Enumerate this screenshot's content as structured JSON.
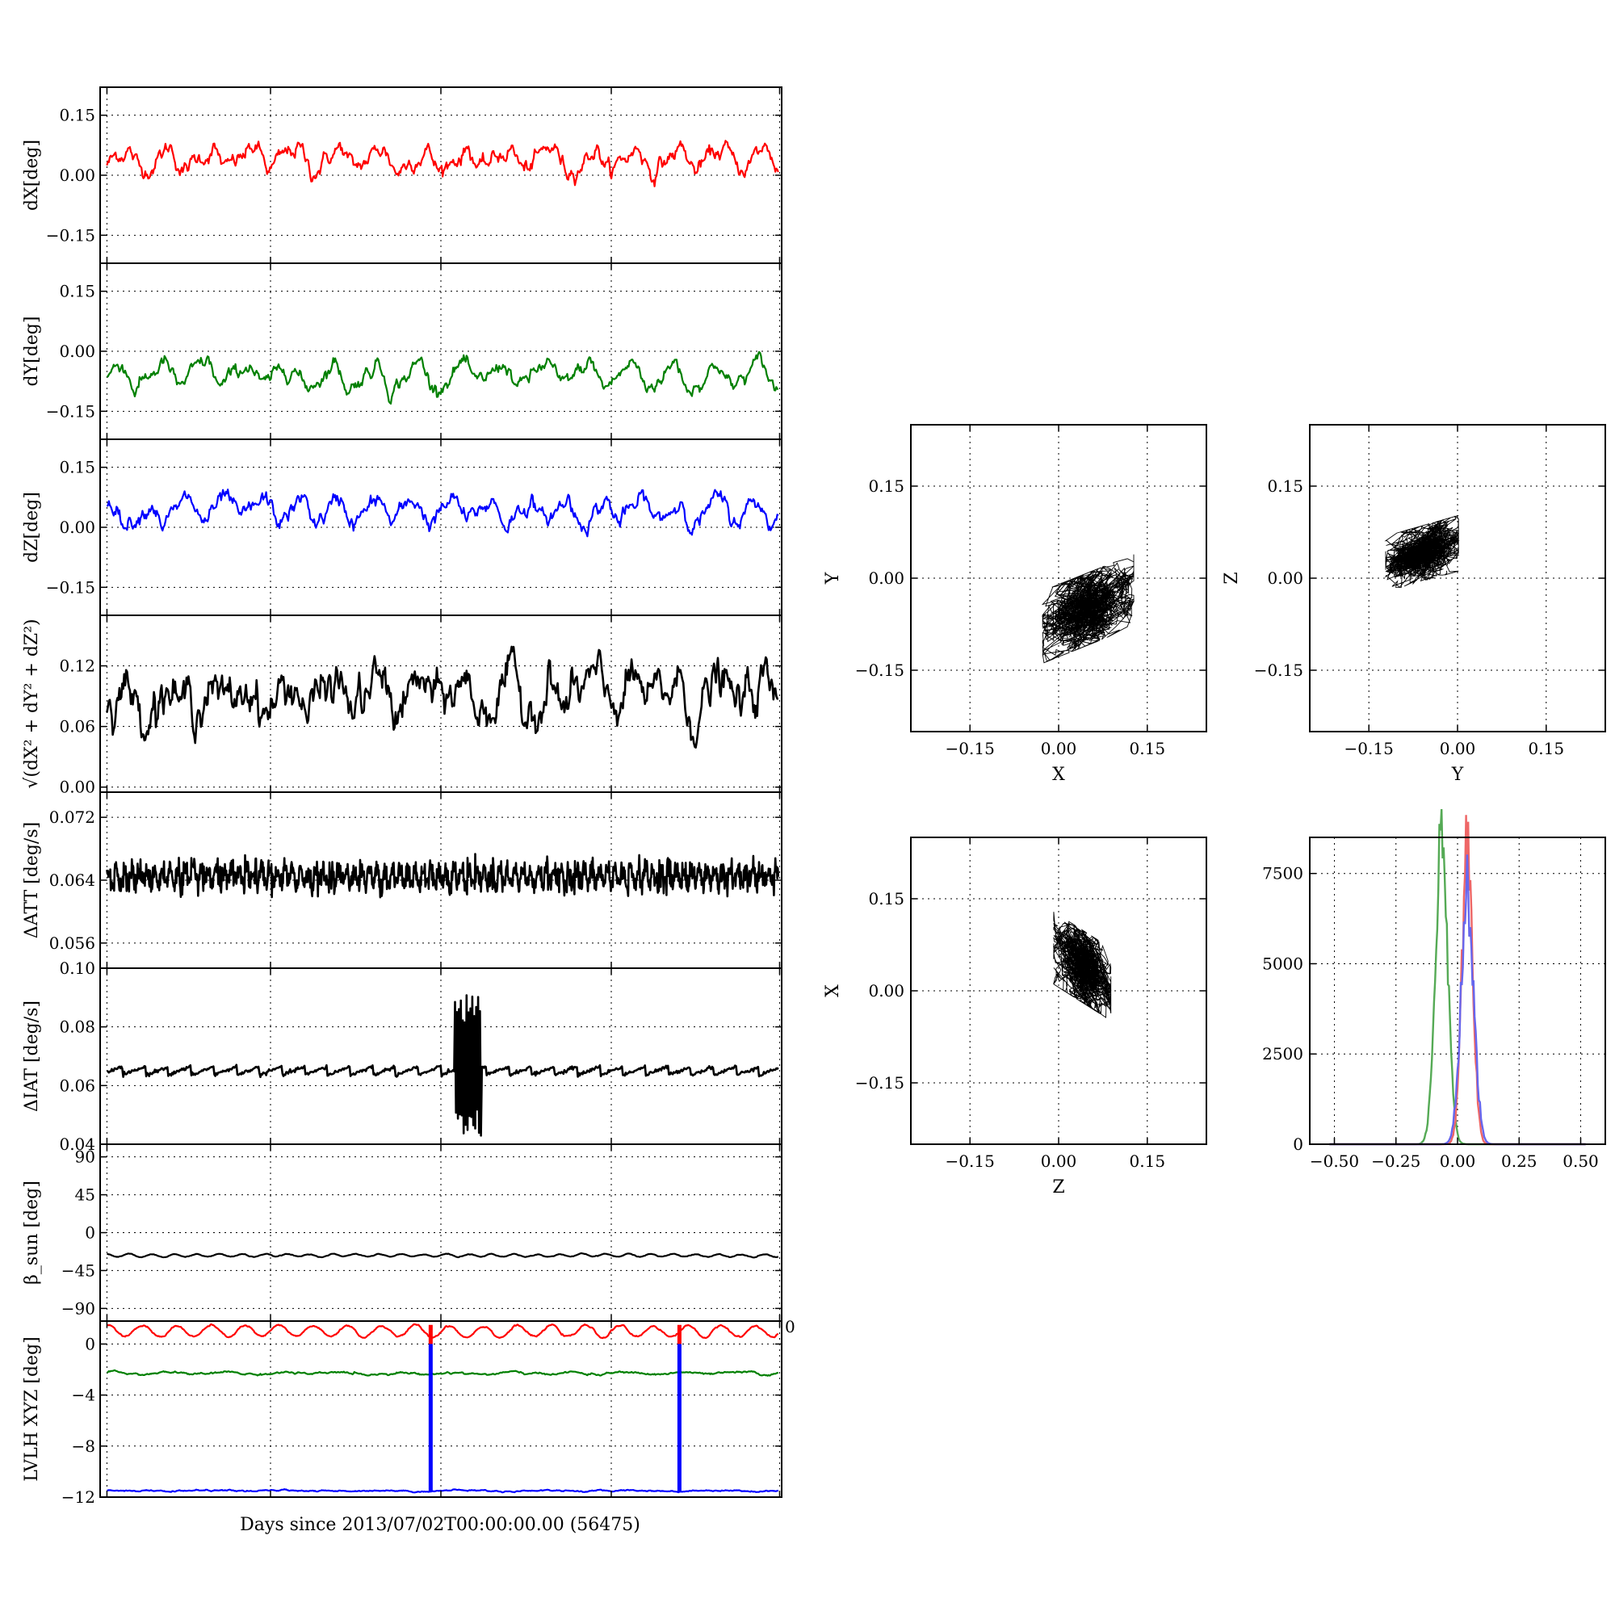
{
  "figure": {
    "xlabel": "Days since 2013/07/02T00:00:00.00 (56475)"
  },
  "chart_data": [
    {
      "id": "dx",
      "type": "line",
      "ylabel": "dX[deg]",
      "ylim": [
        -0.22,
        0.22
      ],
      "yticks": [
        -0.15,
        0.0,
        0.15
      ],
      "yticklabels": [
        "−0.15",
        "0.00",
        "0.15"
      ],
      "grid": true,
      "series": [
        {
          "color": "#ff0000",
          "mean": 0.04,
          "amplitude": 0.032,
          "noise": 0.008,
          "cycles": 16,
          "phase": 0.3
        }
      ]
    },
    {
      "id": "dy",
      "type": "line",
      "ylabel": "dY[deg]",
      "ylim": [
        -0.22,
        0.22
      ],
      "yticks": [
        -0.15,
        0.0,
        0.15
      ],
      "yticklabels": [
        "−0.15",
        "0.00",
        "0.15"
      ],
      "grid": true,
      "series": [
        {
          "color": "#008000",
          "mean": -0.06,
          "amplitude": 0.035,
          "noise": 0.007,
          "cycles": 16,
          "phase": 1.1
        }
      ]
    },
    {
      "id": "dz",
      "type": "line",
      "ylabel": "dZ[deg]",
      "ylim": [
        -0.22,
        0.22
      ],
      "yticks": [
        -0.15,
        0.0,
        0.15
      ],
      "yticklabels": [
        "−0.15",
        "0.00",
        "0.15"
      ],
      "grid": true,
      "series": [
        {
          "color": "#0000ff",
          "mean": 0.04,
          "amplitude": 0.03,
          "noise": 0.008,
          "cycles": 18,
          "phase": 2.0
        }
      ]
    },
    {
      "id": "dr",
      "type": "line",
      "ylabel": "√(dX² + dY² + dZ²)",
      "ylim": [
        -0.005,
        0.17
      ],
      "yticks": [
        0.0,
        0.06,
        0.12
      ],
      "yticklabels": [
        "0.00",
        "0.06",
        "0.12"
      ],
      "grid": true,
      "series": [
        {
          "color": "#000000",
          "mean": 0.09,
          "amplitude": 0.015,
          "noise": 0.008,
          "cycles": 16,
          "phase": 0.7
        }
      ]
    },
    {
      "id": "datt",
      "type": "line",
      "ylabel": "ΔATT [deg/s]",
      "ylim": [
        0.0528,
        0.0752
      ],
      "yticks": [
        0.056,
        0.064,
        0.072
      ],
      "yticklabels": [
        "0.056",
        "0.064",
        "0.072"
      ],
      "grid": true,
      "series": [
        {
          "color": "#000000",
          "mean": 0.0645,
          "amplitude": 0.0008,
          "noise": 0.0012,
          "cycles": 80,
          "phase": 0
        }
      ]
    },
    {
      "id": "diat",
      "type": "line",
      "ylabel": "ΔIAT [deg/s]",
      "ylim": [
        0.04,
        0.1
      ],
      "yticks": [
        0.04,
        0.06,
        0.08,
        0.1
      ],
      "yticklabels": [
        "0.04",
        "0.06",
        "0.08",
        "0.10"
      ],
      "grid": true,
      "series": [
        {
          "color": "#000000",
          "mean": 0.065,
          "amplitude": 0.0015,
          "noise": 0.0003,
          "cycles": 30,
          "phase": 0,
          "burst": [
            0.52,
            0.56,
            0.042,
            0.091
          ]
        }
      ]
    },
    {
      "id": "beta",
      "type": "line",
      "ylabel": "β_sun [deg]",
      "ylim": [
        -105,
        105
      ],
      "yticks": [
        -90,
        -45,
        0,
        45,
        90
      ],
      "yticklabels": [
        "−90",
        "−45",
        "0",
        "45",
        "90"
      ],
      "grid": true,
      "series": [
        {
          "color": "#000000",
          "mean": -27,
          "amplitude": 1.5,
          "noise": 0.2,
          "cycles": 30,
          "phase": 0
        }
      ]
    },
    {
      "id": "lvlh",
      "type": "line",
      "ylabel": "LVLH XYZ [deg]",
      "ylim": [
        -12,
        1.8
      ],
      "yticks": [
        -12,
        -8,
        -4,
        0
      ],
      "yticklabels": [
        "−12",
        "−8",
        "−4",
        "0"
      ],
      "extra_tick_label": "0",
      "grid": true,
      "series": [
        {
          "color": "#ff0000",
          "mean": 1.0,
          "amplitude": 0.45,
          "noise": 0.03,
          "cycles": 20,
          "phase": 0
        },
        {
          "color": "#008000",
          "mean": -2.3,
          "amplitude": 0.08,
          "noise": 0.03,
          "cycles": 12,
          "phase": 0
        },
        {
          "color": "#0000ff",
          "mean": -11.5,
          "amplitude": 0.04,
          "noise": 0.02,
          "cycles": 8,
          "phase": 0
        }
      ],
      "spikes": [
        0.485,
        0.85
      ]
    },
    {
      "id": "scatter-xy",
      "type": "scatter",
      "xlabel": "X",
      "ylabel": "Y",
      "xlim": [
        -0.25,
        0.25
      ],
      "ylim": [
        -0.25,
        0.25
      ],
      "ticks": [
        -0.15,
        0.0,
        0.15
      ],
      "ticklabels": [
        "−0.15",
        "0.00",
        "0.15"
      ],
      "center": [
        0.05,
        -0.05
      ],
      "spread": [
        0.035,
        0.03
      ],
      "corr": 0.45,
      "grid": true
    },
    {
      "id": "scatter-yz",
      "type": "scatter",
      "xlabel": "Y",
      "ylabel": "Z",
      "xlim": [
        -0.25,
        0.25
      ],
      "ylim": [
        -0.25,
        0.25
      ],
      "ticks": [
        -0.15,
        0.0,
        0.15
      ],
      "ticklabels": [
        "−0.15",
        "0.00",
        "0.15"
      ],
      "center": [
        -0.06,
        0.04
      ],
      "spread": [
        0.028,
        0.022
      ],
      "corr": 0.35,
      "grid": true
    },
    {
      "id": "scatter-zx",
      "type": "scatter",
      "xlabel": "Z",
      "ylabel": "X",
      "xlim": [
        -0.25,
        0.25
      ],
      "ylim": [
        -0.25,
        0.25
      ],
      "ticks": [
        -0.15,
        0.0,
        0.15
      ],
      "ticklabels": [
        "−0.15",
        "0.00",
        "0.15"
      ],
      "center": [
        0.04,
        0.04
      ],
      "spread": [
        0.022,
        0.03
      ],
      "corr": -0.45,
      "grid": true
    },
    {
      "id": "hist",
      "type": "line",
      "xlim": [
        -0.6,
        0.6
      ],
      "ylim": [
        0,
        8500
      ],
      "xticks": [
        -0.5,
        -0.25,
        0.0,
        0.25,
        0.5
      ],
      "xticklabels": [
        "−0.50",
        "−0.25",
        "0.00",
        "0.25",
        "0.50"
      ],
      "yticks": [
        0,
        2500,
        5000,
        7500
      ],
      "yticklabels": [
        "0",
        "2500",
        "5000",
        "7500"
      ],
      "grid": true,
      "series": [
        {
          "color": "#55aa55",
          "center": -0.065,
          "width": 0.025,
          "peak": 8300
        },
        {
          "color": "#ee6666",
          "center": 0.04,
          "width": 0.022,
          "peak": 8200
        },
        {
          "color": "#6666ee",
          "center": 0.04,
          "width": 0.026,
          "peak": 7000
        }
      ]
    }
  ]
}
